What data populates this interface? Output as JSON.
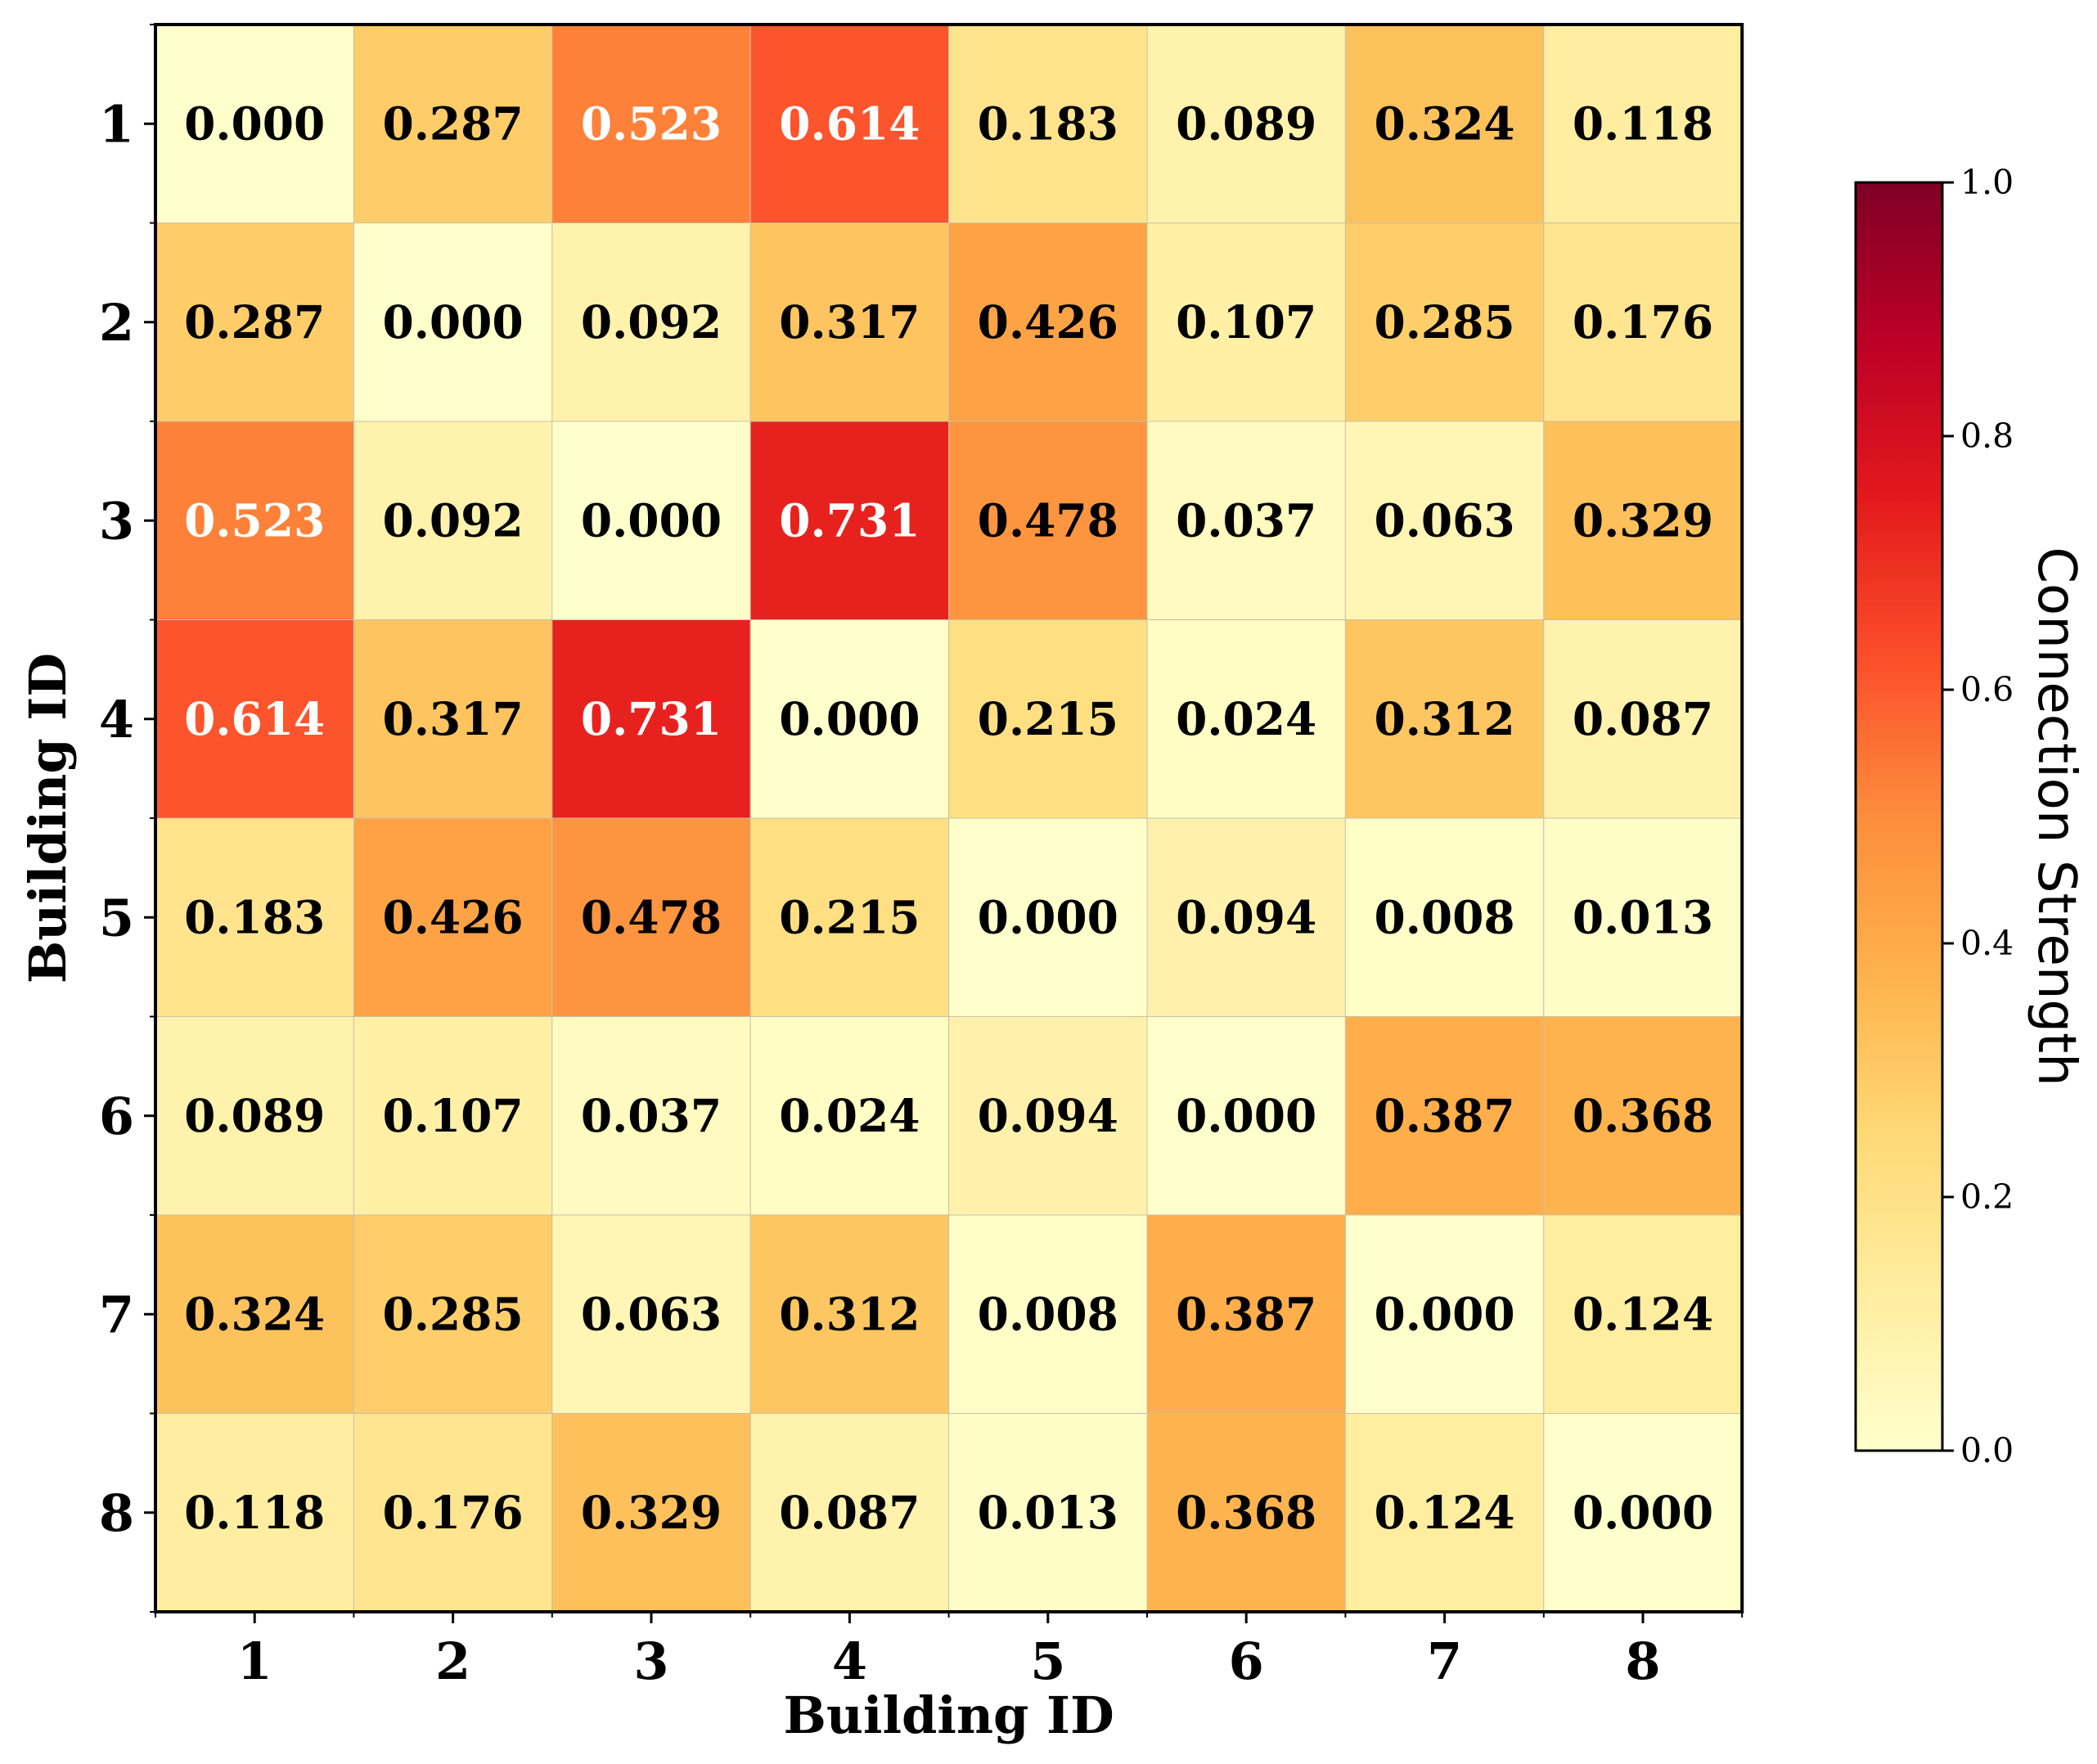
{
  "chart_data": {
    "type": "heatmap",
    "title": "",
    "xlabel": "Building ID",
    "ylabel": "Building ID",
    "x_categories": [
      "1",
      "2",
      "3",
      "4",
      "5",
      "6",
      "7",
      "8"
    ],
    "y_categories": [
      "1",
      "2",
      "3",
      "4",
      "5",
      "6",
      "7",
      "8"
    ],
    "values": [
      [
        0.0,
        0.287,
        0.523,
        0.614,
        0.183,
        0.089,
        0.324,
        0.118
      ],
      [
        0.287,
        0.0,
        0.092,
        0.317,
        0.426,
        0.107,
        0.285,
        0.176
      ],
      [
        0.523,
        0.092,
        0.0,
        0.731,
        0.478,
        0.037,
        0.063,
        0.329
      ],
      [
        0.614,
        0.317,
        0.731,
        0.0,
        0.215,
        0.024,
        0.312,
        0.087
      ],
      [
        0.183,
        0.426,
        0.478,
        0.215,
        0.0,
        0.094,
        0.008,
        0.013
      ],
      [
        0.089,
        0.107,
        0.037,
        0.024,
        0.094,
        0.0,
        0.387,
        0.368
      ],
      [
        0.324,
        0.285,
        0.063,
        0.312,
        0.008,
        0.387,
        0.0,
        0.124
      ],
      [
        0.118,
        0.176,
        0.329,
        0.087,
        0.013,
        0.368,
        0.124,
        0.0
      ]
    ],
    "value_format": "0.000",
    "colormap": "YlOrRd",
    "colorbar": {
      "label": "Connection Strength",
      "range": [
        0.0,
        1.0
      ],
      "ticks": [
        "0.0",
        "0.2",
        "0.4",
        "0.6",
        "0.8",
        "1.0"
      ]
    },
    "grid": false
  },
  "colors": {
    "text_dark": "#000000",
    "text_light": "#ffffff",
    "cell_border": "#c8c0a8",
    "colormap_stops": [
      "#ffffcc",
      "#ffeda0",
      "#fed976",
      "#feb24c",
      "#fd8d3c",
      "#fc4e2a",
      "#e31a1c",
      "#bd0026",
      "#800026"
    ]
  }
}
